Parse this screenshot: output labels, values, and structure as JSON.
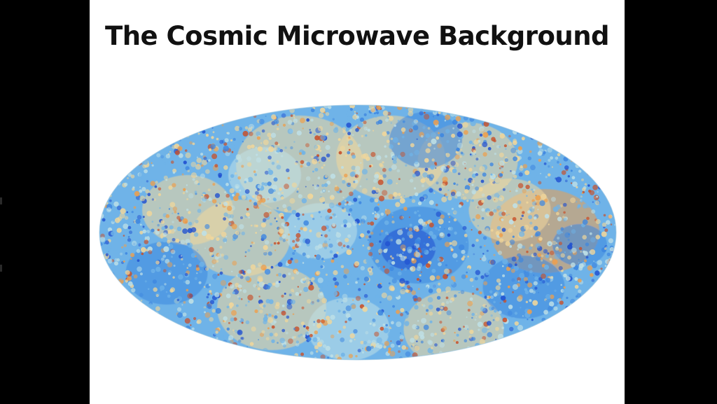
{
  "slide": {
    "title": "The Cosmic Microwave Background",
    "background_color": "#ffffff"
  },
  "frame": {
    "background_color": "#000000"
  },
  "sky_map": {
    "projection": "Mollweide (all-sky ellipse)",
    "colors": {
      "cold_deep": "#1f4fd0",
      "cold": "#3d86e0",
      "cool": "#6fb3e8",
      "neutral": "#bfe0e6",
      "warm_pale": "#f2d79a",
      "warm": "#ee9f4c",
      "hot": "#c8502a"
    }
  }
}
